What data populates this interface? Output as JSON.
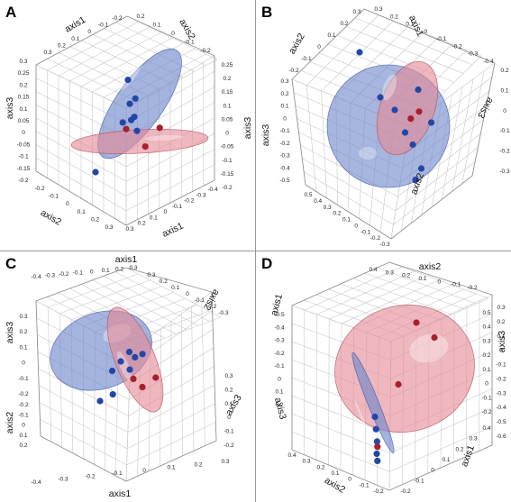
{
  "colors": {
    "blue_fill": "#6d86c9",
    "blue_edge": "#3a55a6",
    "blue_point": "#2446a8",
    "red_fill": "#e58a96",
    "red_edge": "#b24b58",
    "red_point": "#a81f2f",
    "grid": "#c9c9c9",
    "box": "#8a8a8a"
  },
  "chart_data": [
    {
      "panel": "A",
      "type": "scatter",
      "axis_labels": [
        "axis1",
        "axis2",
        "axis3",
        "axis2",
        "axis3",
        "axis1"
      ],
      "tick_labels": [
        [
          "0.3",
          "0.2",
          "0.1",
          "0",
          "-0.1",
          "-0.2"
        ],
        [
          "0.2",
          "0.1",
          "0",
          "-0.1",
          "-0.2"
        ],
        [
          "0.3",
          "0.25",
          "0.2",
          "0.15",
          "0.1",
          "0.05",
          "0",
          "-0.05",
          "-0.1",
          "-0.15",
          "-0.2"
        ],
        [
          "0.25",
          "0.2",
          "0.15",
          "0.1",
          "0.05",
          "0",
          "-0.05",
          "-0.1",
          "-0.15",
          "-0.2"
        ],
        [
          "-0.2",
          "-0.1",
          "0",
          "0.1",
          "0.2",
          "0.3"
        ],
        [
          "0.3",
          "0.2",
          "0.1",
          "0",
          "-0.1",
          "-0.2",
          "-0.3",
          "-0.4"
        ]
      ],
      "blue_points": [
        [
          -0.02,
          0.12,
          0.18
        ],
        [
          0.03,
          0.15,
          0.1
        ],
        [
          0.0,
          0.1,
          0.08
        ],
        [
          0.05,
          0.05,
          0.03
        ],
        [
          -0.05,
          0.08,
          0.0
        ],
        [
          0.04,
          0.0,
          0.02
        ],
        [
          0.1,
          -0.05,
          -0.02
        ],
        [
          -0.2,
          -0.15,
          -0.2
        ]
      ],
      "red_points": [
        [
          0.0,
          0.0,
          -0.02
        ],
        [
          0.18,
          -0.1,
          -0.08
        ],
        [
          0.28,
          -0.05,
          0.0
        ]
      ]
    },
    {
      "panel": "B",
      "type": "scatter",
      "axis_labels": [
        "axis1",
        "axis2",
        "axis3",
        "axis3",
        "axis2"
      ],
      "tick_labels": [
        [
          "0.3",
          "0.2",
          "0.1",
          "0",
          "-0.1",
          "-0.2",
          "-0.3",
          "-0.4"
        ],
        [
          "-0.2",
          "-0.1",
          "0",
          "0.1",
          "0.2",
          "0.3"
        ],
        [
          "0.3",
          "0.2",
          "0.1",
          "0",
          "-0.1",
          "-0.2",
          "-0.3",
          "-0.4",
          "-0.5"
        ],
        [
          "0.2",
          "0.1",
          "0",
          "-0.1",
          "-0.2",
          "-0.3"
        ],
        [
          "0.5",
          "0.4",
          "0.3",
          "0.2",
          "0.1",
          "0",
          "-0.1",
          "-0.2",
          "-0.3"
        ]
      ],
      "blue_points": [
        [
          -0.2,
          0.2,
          0.3
        ],
        [
          -0.1,
          0.1,
          0.1
        ],
        [
          0.0,
          0.05,
          0.05
        ],
        [
          0.05,
          0.0,
          -0.05
        ],
        [
          0.1,
          -0.05,
          -0.1
        ],
        [
          0.2,
          0.1,
          0.15
        ],
        [
          0.15,
          -0.15,
          -0.2
        ],
        [
          0.25,
          0.05,
          0.0
        ],
        [
          0.1,
          -0.2,
          -0.25
        ]
      ],
      "red_points": [
        [
          0.12,
          0.0,
          0.02
        ],
        [
          0.18,
          0.05,
          0.05
        ]
      ]
    },
    {
      "panel": "C",
      "type": "scatter",
      "axis_labels": [
        "axis1",
        "axis3",
        "axis2",
        "axis2",
        "axis3",
        "axis1"
      ],
      "tick_labels": [
        [
          "-0.4",
          "-0.3",
          "-0.2",
          "-0.1",
          "0",
          "0.1",
          "0.2",
          "0.3"
        ],
        [
          "0.3",
          "0.2",
          "0.1",
          "0",
          "-0.1",
          "-0.2"
        ],
        [
          "-0.2",
          "-0.1",
          "0",
          "0.1",
          "0.2"
        ],
        [
          "0.3",
          "0.2",
          "0.1",
          "0",
          "-0.1",
          "-0.2",
          "-0.3"
        ],
        [
          "0.3",
          "0.2",
          "0.1",
          "0",
          "-0.1",
          "-0.2"
        ],
        [
          "-0.4",
          "-0.3",
          "-0.2",
          "-0.1",
          "0",
          "0.1",
          "0.2",
          "0.3"
        ]
      ],
      "blue_points": [
        [
          0.05,
          0.15,
          0.1
        ],
        [
          0.0,
          0.1,
          0.05
        ],
        [
          -0.05,
          0.05,
          0.0
        ],
        [
          0.1,
          0.12,
          0.08
        ],
        [
          0.15,
          0.14,
          0.1
        ],
        [
          0.08,
          0.05,
          0.02
        ],
        [
          -0.1,
          -0.1,
          -0.15
        ],
        [
          0.0,
          -0.12,
          -0.1
        ]
      ],
      "red_points": [
        [
          0.12,
          0.0,
          -0.02
        ],
        [
          0.2,
          -0.05,
          -0.05
        ],
        [
          0.28,
          0.02,
          0.0
        ]
      ]
    },
    {
      "panel": "D",
      "type": "scatter",
      "axis_labels": [
        "axis2",
        "axis1",
        "axis3",
        "axis3",
        "axis1",
        "axis2"
      ],
      "tick_labels": [
        [
          "0.4",
          "0.3",
          "0.2",
          "0.1",
          "0",
          "-0.1",
          "-0.2"
        ],
        [
          "-0.5",
          "-0.4",
          "-0.3",
          "-0.2",
          "-0.1",
          "0",
          "0.1",
          "0.2"
        ],
        [
          "0.3",
          "0.2",
          "0.1",
          "0",
          "-0.1",
          "-0.2",
          "-0.3",
          "-0.4",
          "-0.5",
          "-0.6"
        ],
        [
          "0.5",
          "0.4",
          "0.3",
          "0.2",
          "0.1",
          "0",
          "-0.1",
          "-0.2"
        ],
        [
          "0.4",
          "0.3",
          "0.2",
          "0.1",
          "0",
          "-0.1",
          "-0.2"
        ],
        [
          "0.4",
          "0.3",
          "0.2",
          "0.1",
          "0",
          "-0.1",
          "-0.2"
        ]
      ],
      "blue_points": [
        [
          -0.1,
          -0.05,
          -0.2
        ],
        [
          -0.08,
          -0.1,
          -0.25
        ],
        [
          -0.06,
          -0.15,
          -0.3
        ],
        [
          -0.05,
          -0.2,
          -0.35
        ],
        [
          -0.04,
          -0.22,
          -0.38
        ]
      ],
      "red_points": [
        [
          0.1,
          0.3,
          0.2
        ],
        [
          0.25,
          0.2,
          0.15
        ],
        [
          0.05,
          0.0,
          -0.05
        ],
        [
          -0.05,
          -0.18,
          -0.32
        ]
      ]
    }
  ]
}
